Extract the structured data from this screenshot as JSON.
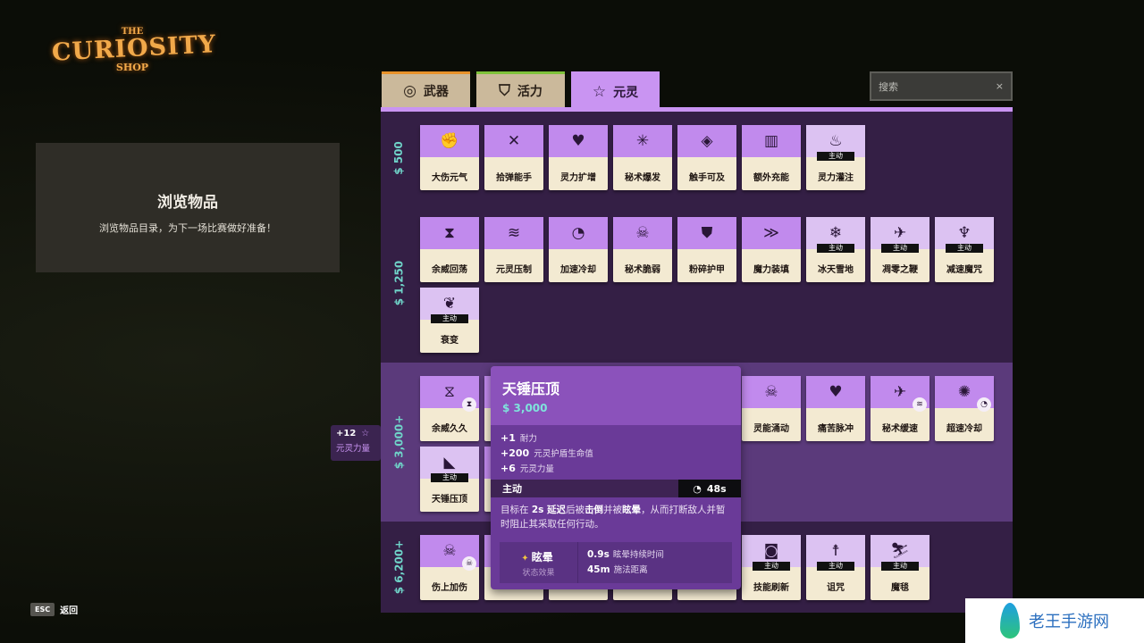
{
  "logo": {
    "the": "THE",
    "curiosity": "CURIOSITY",
    "shop": "SHOP"
  },
  "info": {
    "title": "浏览物品",
    "subtitle": "浏览物品目录，为下一场比赛做好准备！"
  },
  "tabs": [
    {
      "label": "武器",
      "icon": "weapon-icon",
      "glyph": "◎",
      "color": "#e8922a",
      "active": false
    },
    {
      "label": "活力",
      "icon": "vitality-shield-icon",
      "glyph": "⛉",
      "color": "#7fc23a",
      "active": false
    },
    {
      "label": "元灵",
      "icon": "spirit-star-icon",
      "glyph": "☆",
      "color": "#c994f2",
      "active": true
    }
  ],
  "search": {
    "placeholder": "搜索",
    "clear": "×"
  },
  "colors": {
    "accent": "#c994f2",
    "price": "#6fd3c8",
    "card_top": "#c18aed",
    "card_bottom": "#f3ead2"
  },
  "rows": [
    {
      "price": "500",
      "items": [
        {
          "label": "大伤元气",
          "glyph": "✊"
        },
        {
          "label": "拾弹能手",
          "glyph": "✕"
        },
        {
          "label": "灵力扩增",
          "glyph": "♥"
        },
        {
          "label": "秘术爆发",
          "glyph": "✳"
        },
        {
          "label": "触手可及",
          "glyph": "◈"
        },
        {
          "label": "额外充能",
          "glyph": "▥"
        },
        {
          "label": "灵力灌注",
          "glyph": "♨",
          "active": true
        }
      ]
    },
    {
      "price": "1,250",
      "items": [
        {
          "label": "余威回荡",
          "glyph": "⧗"
        },
        {
          "label": "元灵压制",
          "glyph": "≋"
        },
        {
          "label": "加速冷却",
          "glyph": "◔"
        },
        {
          "label": "秘术脆弱",
          "glyph": "☠"
        },
        {
          "label": "粉碎护甲",
          "glyph": "⛊"
        },
        {
          "label": "魔力装填",
          "glyph": "≫"
        },
        {
          "label": "冰天雪地",
          "glyph": "❄",
          "active": true
        },
        {
          "label": "凋零之鞭",
          "glyph": "✈",
          "active": true
        },
        {
          "label": "减速魔咒",
          "glyph": "♆",
          "active": true
        },
        {
          "label": "衰变",
          "glyph": "❦",
          "active": true
        }
      ]
    },
    {
      "price": "3,000+",
      "highlight": true,
      "items": [
        {
          "label": "余威久久",
          "glyph": "⧖",
          "corner": "⧗"
        },
        {
          "label": "",
          "glyph": ""
        },
        {
          "label": "",
          "glyph": ""
        },
        {
          "label": "",
          "glyph": ""
        },
        {
          "label": "",
          "glyph": ""
        },
        {
          "label": "灵能涌动",
          "glyph": "☠"
        },
        {
          "label": "痛苦脉冲",
          "glyph": "♥"
        },
        {
          "label": "秘术缓速",
          "glyph": "✈",
          "corner": "≋"
        },
        {
          "label": "超速冷却",
          "glyph": "✺",
          "corner": "◔"
        },
        {
          "label": "天锤压顶",
          "glyph": "◣",
          "active": true
        },
        {
          "label": "",
          "glyph": ""
        }
      ]
    },
    {
      "price": "6,200+",
      "items": [
        {
          "label": "伤上加伤",
          "glyph": "☠",
          "corner": "☠"
        },
        {
          "label": "",
          "glyph": ""
        },
        {
          "label": "",
          "glyph": ""
        },
        {
          "label": "",
          "glyph": ""
        },
        {
          "label": "",
          "glyph": ""
        },
        {
          "label": "技能刷新",
          "glyph": "◙",
          "active": true
        },
        {
          "label": "诅咒",
          "glyph": "☨",
          "active": true
        },
        {
          "label": "魔毯",
          "glyph": "⛷",
          "active": true
        }
      ]
    }
  ],
  "active_badge": "主动",
  "tooltip": {
    "name": "天锤压顶",
    "cost": "3,000",
    "stats": [
      {
        "value": "+1",
        "label": "耐力"
      },
      {
        "value": "+200",
        "label": "元灵护盾生命值"
      },
      {
        "value": "+6",
        "label": "元灵力量"
      }
    ],
    "type": "主动",
    "cooldown": "48s",
    "desc": {
      "a": "目标在 ",
      "b": "2s 延迟",
      "c": "后被",
      "d": "击倒",
      "e": "并被",
      "f": "眩晕",
      "g": "，从而打断敌人并暂时阻止其采取任何行动。"
    },
    "status": {
      "name": "眩晕",
      "sub": "状态效果",
      "lines": [
        {
          "value": "0.9s",
          "label": "眩晕持续时间"
        },
        {
          "value": "45m",
          "label": "施法距离"
        }
      ]
    }
  },
  "spirit_power": {
    "value": "+12",
    "label": "元灵力量"
  },
  "footer": {
    "key": "ESC",
    "label": "返回"
  },
  "watermark": "老王手游网"
}
